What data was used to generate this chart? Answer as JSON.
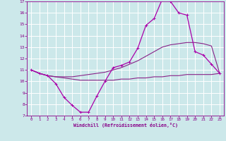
{
  "xlabel": "Windchill (Refroidissement éolien,°C)",
  "background_color": "#cce8ea",
  "grid_color": "#ffffff",
  "line_color_main": "#aa00aa",
  "line_color_upper": "#882288",
  "line_color_lower": "#882288",
  "x_hours": [
    0,
    1,
    2,
    3,
    4,
    5,
    6,
    7,
    8,
    9,
    10,
    11,
    12,
    13,
    14,
    15,
    16,
    17,
    18,
    19,
    20,
    21,
    22,
    23
  ],
  "y_temp": [
    11.0,
    10.7,
    10.5,
    9.8,
    8.6,
    7.9,
    7.3,
    7.3,
    8.7,
    10.0,
    11.2,
    11.4,
    11.7,
    12.9,
    14.9,
    15.5,
    17.2,
    17.0,
    16.0,
    15.8,
    12.6,
    12.3,
    11.5,
    10.7
  ],
  "y_upper": [
    11.0,
    10.7,
    10.5,
    10.4,
    10.4,
    10.4,
    10.5,
    10.6,
    10.7,
    10.8,
    11.0,
    11.2,
    11.5,
    11.8,
    12.2,
    12.6,
    13.0,
    13.2,
    13.3,
    13.4,
    13.4,
    13.3,
    13.1,
    10.7
  ],
  "y_lower": [
    11.0,
    10.7,
    10.5,
    10.4,
    10.3,
    10.2,
    10.1,
    10.1,
    10.1,
    10.1,
    10.1,
    10.2,
    10.2,
    10.3,
    10.3,
    10.4,
    10.4,
    10.5,
    10.5,
    10.6,
    10.6,
    10.6,
    10.6,
    10.7
  ],
  "ylim": [
    7,
    17
  ],
  "xlim_min": -0.5,
  "xlim_max": 23.5,
  "yticks": [
    7,
    8,
    9,
    10,
    11,
    12,
    13,
    14,
    15,
    16,
    17
  ],
  "xticks": [
    0,
    1,
    2,
    3,
    4,
    5,
    6,
    7,
    8,
    9,
    10,
    11,
    12,
    13,
    14,
    15,
    16,
    17,
    18,
    19,
    20,
    21,
    22,
    23
  ]
}
